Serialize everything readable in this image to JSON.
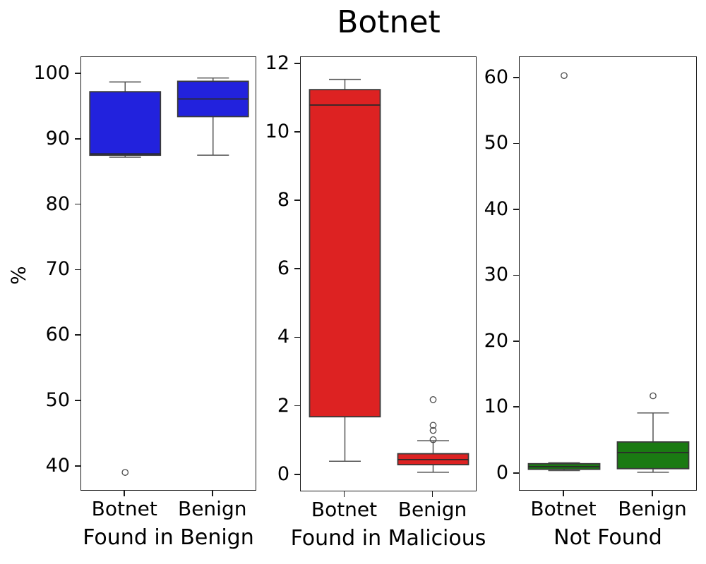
{
  "chart_data": {
    "type": "box",
    "title": "Botnet",
    "ylabel": "%",
    "grid": false,
    "legend": "none",
    "subplots": [
      {
        "xlabel": "Found in Benign",
        "ylim": [
          36.2,
          102.6
        ],
        "yticks": [
          40,
          50,
          60,
          70,
          80,
          90,
          100
        ],
        "box_color": "#2222dd",
        "groups": [
          {
            "label": "Botnet",
            "whislo": 87.3,
            "q1": 87.6,
            "med": 87.8,
            "q3": 97.3,
            "whishi": 98.8,
            "fliers": [
              39.1
            ]
          },
          {
            "label": "Benign",
            "whislo": 87.6,
            "q1": 93.5,
            "med": 96.2,
            "q3": 98.9,
            "whishi": 99.4,
            "fliers": []
          }
        ]
      },
      {
        "xlabel": "Found in Malicious",
        "ylim": [
          -0.5,
          12.2
        ],
        "yticks": [
          0,
          2,
          4,
          6,
          8,
          10,
          12
        ],
        "box_color": "#dd2222",
        "groups": [
          {
            "label": "Botnet",
            "whislo": 0.4,
            "q1": 1.7,
            "med": 10.8,
            "q3": 11.25,
            "whishi": 11.55,
            "fliers": []
          },
          {
            "label": "Benign",
            "whislo": 0.08,
            "q1": 0.3,
            "med": 0.45,
            "q3": 0.62,
            "whishi": 1.0,
            "fliers": [
              1.03,
              1.3,
              1.45,
              2.2
            ]
          }
        ]
      },
      {
        "xlabel": "Not Found",
        "ylim": [
          -2.7,
          63.2
        ],
        "yticks": [
          0,
          10,
          20,
          30,
          40,
          50,
          60
        ],
        "box_color": "#1a7a12",
        "groups": [
          {
            "label": "Botnet",
            "whislo": 0.45,
            "q1": 0.65,
            "med": 1.05,
            "q3": 1.5,
            "whishi": 1.65,
            "fliers": [
              60.4
            ]
          },
          {
            "label": "Benign",
            "whislo": 0.2,
            "q1": 0.75,
            "med": 3.2,
            "q3": 4.8,
            "whishi": 9.2,
            "fliers": [
              11.8
            ]
          }
        ]
      }
    ],
    "style": {
      "edge_color": "#3a3a3a",
      "whisker_color": "#555555",
      "median_color": "#2a2a2a",
      "flier_edge_color": "#4a4a4a",
      "spine_color": "#1a1a1a"
    }
  }
}
